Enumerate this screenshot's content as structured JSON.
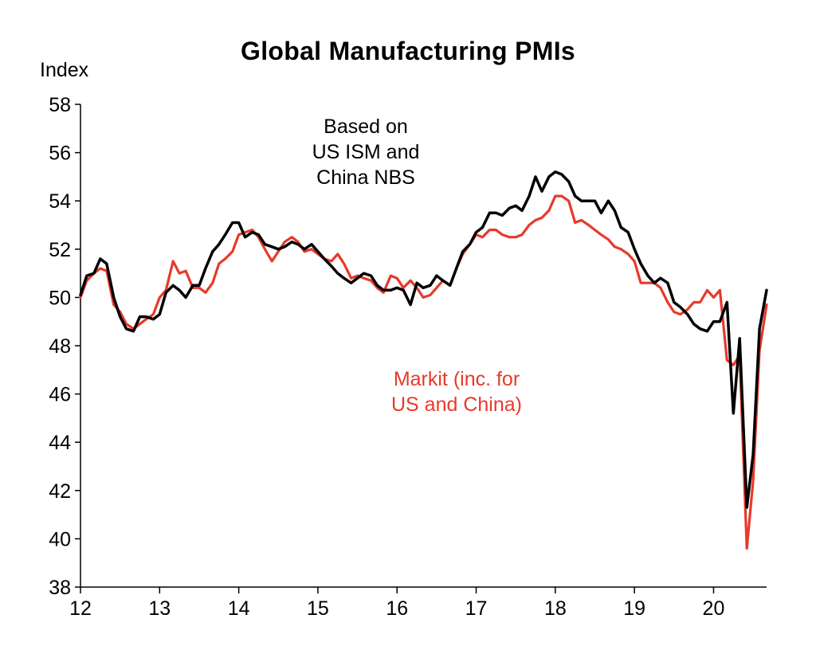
{
  "chart_data": {
    "type": "line",
    "title": "Global Manufacturing PMIs",
    "ylabel": "Index",
    "xlabel": "",
    "ylim": [
      38,
      58
    ],
    "yticks": [
      38,
      40,
      42,
      44,
      46,
      48,
      50,
      52,
      54,
      56,
      58
    ],
    "xlim": [
      2012,
      2020.67
    ],
    "xticks": [
      2012,
      2013,
      2014,
      2015,
      2016,
      2017,
      2018,
      2019,
      2020
    ],
    "xtick_labels": [
      "12",
      "13",
      "14",
      "15",
      "16",
      "17",
      "18",
      "19",
      "20"
    ],
    "grid": false,
    "legend": "none",
    "annotations": [
      {
        "lines": [
          "Based on",
          "US ISM and",
          "China NBS"
        ],
        "color": "#000000"
      },
      {
        "lines": [
          "Markit (inc. for",
          "US and China)"
        ],
        "color": "#e8392b"
      }
    ],
    "series": [
      {
        "color": "#000000",
        "points": [
          [
            2012.0,
            50.1
          ],
          [
            2012.08,
            50.9
          ],
          [
            2012.17,
            51.0
          ],
          [
            2012.25,
            51.6
          ],
          [
            2012.33,
            51.4
          ],
          [
            2012.42,
            50.0
          ],
          [
            2012.5,
            49.2
          ],
          [
            2012.58,
            48.7
          ],
          [
            2012.67,
            48.6
          ],
          [
            2012.75,
            49.2
          ],
          [
            2012.83,
            49.2
          ],
          [
            2012.92,
            49.1
          ],
          [
            2013.0,
            49.3
          ],
          [
            2013.08,
            50.2
          ],
          [
            2013.17,
            50.5
          ],
          [
            2013.25,
            50.3
          ],
          [
            2013.33,
            50.0
          ],
          [
            2013.42,
            50.5
          ],
          [
            2013.5,
            50.5
          ],
          [
            2013.58,
            51.2
          ],
          [
            2013.67,
            51.9
          ],
          [
            2013.75,
            52.2
          ],
          [
            2013.83,
            52.6
          ],
          [
            2013.92,
            53.1
          ],
          [
            2014.0,
            53.1
          ],
          [
            2014.08,
            52.5
          ],
          [
            2014.17,
            52.7
          ],
          [
            2014.25,
            52.6
          ],
          [
            2014.33,
            52.2
          ],
          [
            2014.42,
            52.1
          ],
          [
            2014.5,
            52.0
          ],
          [
            2014.58,
            52.1
          ],
          [
            2014.67,
            52.3
          ],
          [
            2014.75,
            52.2
          ],
          [
            2014.83,
            52.0
          ],
          [
            2014.92,
            52.2
          ],
          [
            2015.0,
            51.9
          ],
          [
            2015.08,
            51.6
          ],
          [
            2015.17,
            51.3
          ],
          [
            2015.25,
            51.0
          ],
          [
            2015.33,
            50.8
          ],
          [
            2015.42,
            50.6
          ],
          [
            2015.5,
            50.8
          ],
          [
            2015.58,
            51.0
          ],
          [
            2015.67,
            50.9
          ],
          [
            2015.75,
            50.5
          ],
          [
            2015.83,
            50.3
          ],
          [
            2015.92,
            50.3
          ],
          [
            2016.0,
            50.4
          ],
          [
            2016.08,
            50.3
          ],
          [
            2016.17,
            49.7
          ],
          [
            2016.25,
            50.6
          ],
          [
            2016.33,
            50.4
          ],
          [
            2016.42,
            50.5
          ],
          [
            2016.5,
            50.9
          ],
          [
            2016.58,
            50.7
          ],
          [
            2016.67,
            50.5
          ],
          [
            2016.75,
            51.2
          ],
          [
            2016.83,
            51.9
          ],
          [
            2016.92,
            52.2
          ],
          [
            2017.0,
            52.7
          ],
          [
            2017.08,
            52.9
          ],
          [
            2017.17,
            53.5
          ],
          [
            2017.25,
            53.5
          ],
          [
            2017.33,
            53.4
          ],
          [
            2017.42,
            53.7
          ],
          [
            2017.5,
            53.8
          ],
          [
            2017.58,
            53.6
          ],
          [
            2017.67,
            54.2
          ],
          [
            2017.75,
            55.0
          ],
          [
            2017.83,
            54.4
          ],
          [
            2017.92,
            55.0
          ],
          [
            2018.0,
            55.2
          ],
          [
            2018.08,
            55.1
          ],
          [
            2018.17,
            54.8
          ],
          [
            2018.25,
            54.2
          ],
          [
            2018.33,
            54.0
          ],
          [
            2018.42,
            54.0
          ],
          [
            2018.5,
            54.0
          ],
          [
            2018.58,
            53.5
          ],
          [
            2018.67,
            54.0
          ],
          [
            2018.75,
            53.6
          ],
          [
            2018.83,
            52.9
          ],
          [
            2018.92,
            52.7
          ],
          [
            2019.0,
            52.0
          ],
          [
            2019.08,
            51.4
          ],
          [
            2019.17,
            50.9
          ],
          [
            2019.25,
            50.6
          ],
          [
            2019.33,
            50.8
          ],
          [
            2019.42,
            50.6
          ],
          [
            2019.5,
            49.8
          ],
          [
            2019.58,
            49.6
          ],
          [
            2019.67,
            49.3
          ],
          [
            2019.75,
            48.9
          ],
          [
            2019.83,
            48.7
          ],
          [
            2019.92,
            48.6
          ],
          [
            2020.0,
            49.0
          ],
          [
            2020.08,
            49.0
          ],
          [
            2020.17,
            49.8
          ],
          [
            2020.25,
            45.2
          ],
          [
            2020.33,
            48.3
          ],
          [
            2020.42,
            41.3
          ],
          [
            2020.5,
            43.5
          ],
          [
            2020.58,
            48.7
          ],
          [
            2020.67,
            50.3
          ],
          [
            2020.75,
            51.2
          ],
          [
            2020.83,
            51.9
          ]
        ]
      },
      {
        "color": "#e8392b",
        "points": [
          [
            2012.0,
            50.0
          ],
          [
            2012.08,
            50.7
          ],
          [
            2012.17,
            51.0
          ],
          [
            2012.25,
            51.2
          ],
          [
            2012.33,
            51.1
          ],
          [
            2012.42,
            49.7
          ],
          [
            2012.5,
            49.4
          ],
          [
            2012.58,
            48.9
          ],
          [
            2012.67,
            48.7
          ],
          [
            2012.75,
            48.9
          ],
          [
            2012.83,
            49.1
          ],
          [
            2012.92,
            49.3
          ],
          [
            2013.0,
            50.0
          ],
          [
            2013.08,
            50.3
          ],
          [
            2013.17,
            51.5
          ],
          [
            2013.25,
            51.0
          ],
          [
            2013.33,
            51.1
          ],
          [
            2013.42,
            50.4
          ],
          [
            2013.5,
            50.4
          ],
          [
            2013.58,
            50.2
          ],
          [
            2013.67,
            50.6
          ],
          [
            2013.75,
            51.4
          ],
          [
            2013.83,
            51.6
          ],
          [
            2013.92,
            51.9
          ],
          [
            2014.0,
            52.6
          ],
          [
            2014.08,
            52.7
          ],
          [
            2014.17,
            52.8
          ],
          [
            2014.25,
            52.5
          ],
          [
            2014.33,
            52.0
          ],
          [
            2014.42,
            51.5
          ],
          [
            2014.5,
            51.9
          ],
          [
            2014.58,
            52.3
          ],
          [
            2014.67,
            52.5
          ],
          [
            2014.75,
            52.3
          ],
          [
            2014.83,
            51.9
          ],
          [
            2014.92,
            52.0
          ],
          [
            2015.0,
            51.8
          ],
          [
            2015.08,
            51.6
          ],
          [
            2015.17,
            51.5
          ],
          [
            2015.25,
            51.8
          ],
          [
            2015.33,
            51.4
          ],
          [
            2015.42,
            50.8
          ],
          [
            2015.5,
            50.9
          ],
          [
            2015.58,
            50.8
          ],
          [
            2015.67,
            50.7
          ],
          [
            2015.75,
            50.4
          ],
          [
            2015.83,
            50.2
          ],
          [
            2015.92,
            50.9
          ],
          [
            2016.0,
            50.8
          ],
          [
            2016.08,
            50.4
          ],
          [
            2016.17,
            50.7
          ],
          [
            2016.25,
            50.4
          ],
          [
            2016.33,
            50.0
          ],
          [
            2016.42,
            50.1
          ],
          [
            2016.5,
            50.4
          ],
          [
            2016.58,
            50.7
          ],
          [
            2016.67,
            50.5
          ],
          [
            2016.75,
            51.2
          ],
          [
            2016.83,
            51.8
          ],
          [
            2016.92,
            52.2
          ],
          [
            2017.0,
            52.6
          ],
          [
            2017.08,
            52.5
          ],
          [
            2017.17,
            52.8
          ],
          [
            2017.25,
            52.8
          ],
          [
            2017.33,
            52.6
          ],
          [
            2017.42,
            52.5
          ],
          [
            2017.5,
            52.5
          ],
          [
            2017.58,
            52.6
          ],
          [
            2017.67,
            53.0
          ],
          [
            2017.75,
            53.2
          ],
          [
            2017.83,
            53.3
          ],
          [
            2017.92,
            53.6
          ],
          [
            2018.0,
            54.2
          ],
          [
            2018.08,
            54.2
          ],
          [
            2018.17,
            54.0
          ],
          [
            2018.25,
            53.1
          ],
          [
            2018.33,
            53.2
          ],
          [
            2018.42,
            53.0
          ],
          [
            2018.5,
            52.8
          ],
          [
            2018.58,
            52.6
          ],
          [
            2018.67,
            52.4
          ],
          [
            2018.75,
            52.1
          ],
          [
            2018.83,
            52.0
          ],
          [
            2018.92,
            51.8
          ],
          [
            2019.0,
            51.5
          ],
          [
            2019.08,
            50.6
          ],
          [
            2019.17,
            50.6
          ],
          [
            2019.25,
            50.6
          ],
          [
            2019.33,
            50.4
          ],
          [
            2019.42,
            49.8
          ],
          [
            2019.5,
            49.4
          ],
          [
            2019.58,
            49.3
          ],
          [
            2019.67,
            49.5
          ],
          [
            2019.75,
            49.8
          ],
          [
            2019.83,
            49.8
          ],
          [
            2019.92,
            50.3
          ],
          [
            2020.0,
            50.0
          ],
          [
            2020.08,
            50.3
          ],
          [
            2020.17,
            47.4
          ],
          [
            2020.25,
            47.2
          ],
          [
            2020.33,
            47.6
          ],
          [
            2020.42,
            39.6
          ],
          [
            2020.5,
            42.4
          ],
          [
            2020.58,
            47.8
          ],
          [
            2020.67,
            49.7
          ],
          [
            2020.75,
            50.9
          ],
          [
            2020.83,
            51.6
          ]
        ]
      }
    ]
  }
}
